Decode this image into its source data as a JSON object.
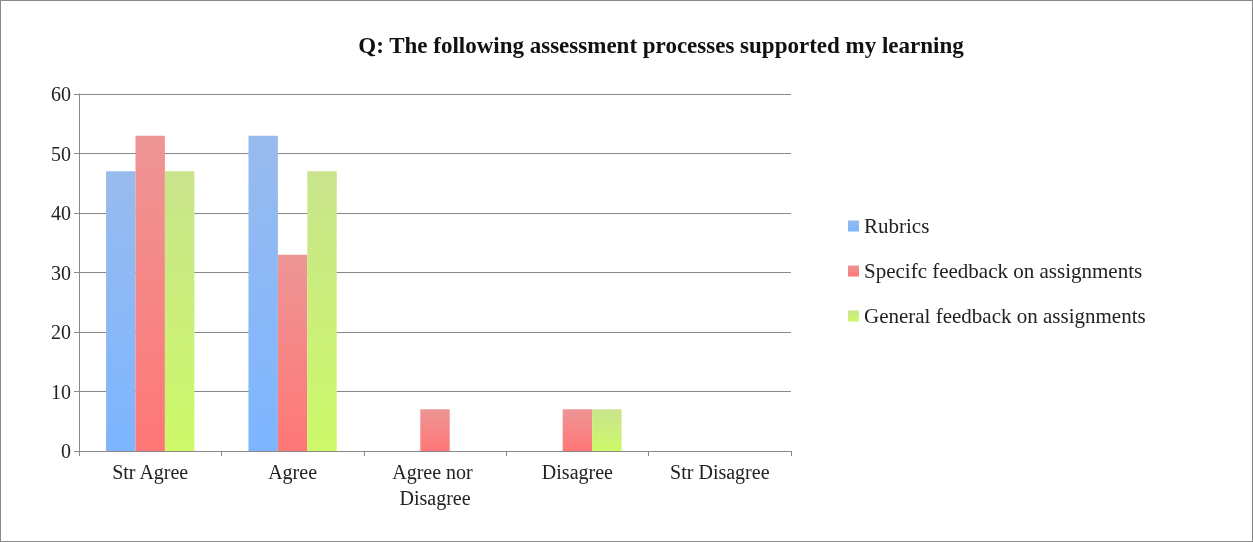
{
  "chart_data": {
    "type": "bar",
    "title": "Q: The following assessment processes supported my learning",
    "categories": [
      "Str Agree",
      "Agree",
      "Agree nor Disagree",
      "Disagree",
      "Str Disagree"
    ],
    "series": [
      {
        "name": "Rubrics",
        "color": "#6d9ee8",
        "values": [
          47,
          53,
          0,
          0,
          0
        ]
      },
      {
        "name": "Specifc feedback on assignments",
        "color": "#e86868",
        "values": [
          53,
          33,
          7,
          7,
          0
        ]
      },
      {
        "name": "General feedback on assignments",
        "color": "#b3d95c",
        "values": [
          47,
          47,
          0,
          7,
          0
        ]
      }
    ],
    "ylim": [
      0,
      60
    ],
    "yticks": [
      0,
      10,
      20,
      30,
      40,
      50,
      60
    ],
    "grid": "y",
    "legend": "right"
  }
}
